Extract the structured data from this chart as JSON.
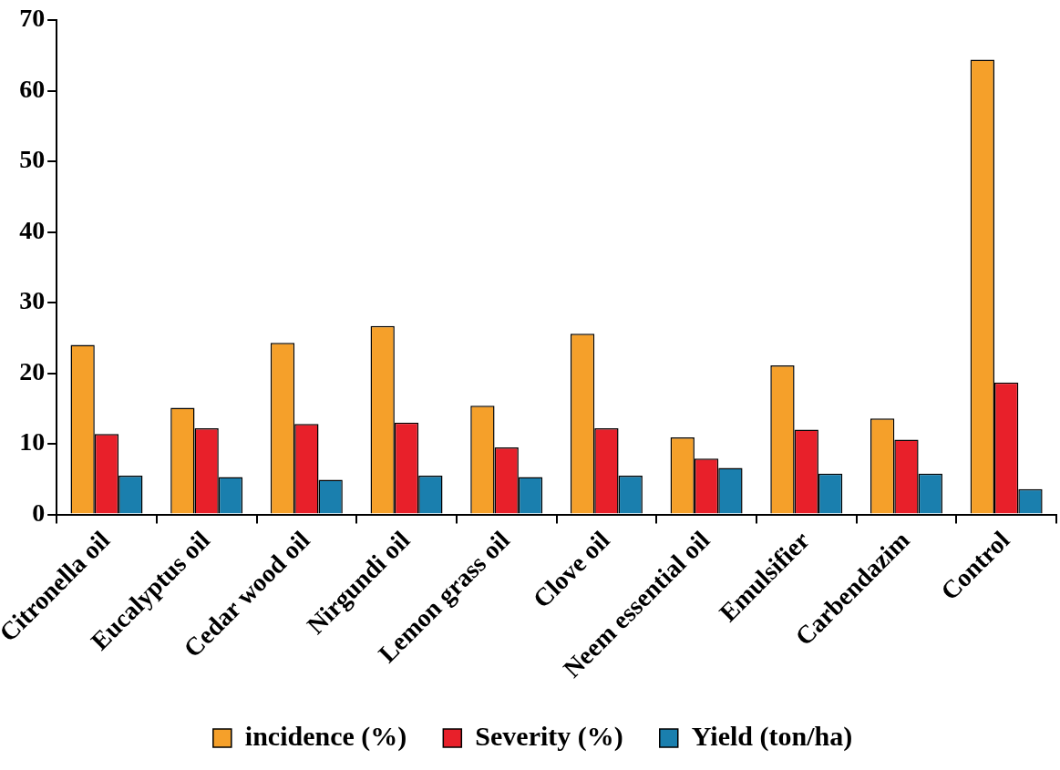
{
  "chart_data": {
    "type": "bar",
    "categories": [
      "Citronella oil",
      "Eucalyptus oil",
      "Cedar wood oil",
      "Nirgundi oil",
      "Lemon grass oil",
      "Clove oil",
      "Neem essential oil",
      "Emulsifier",
      "Carbendazim",
      "Control"
    ],
    "series": [
      {
        "name": "incidence (%)",
        "color": "#f5a02a",
        "values": [
          24.0,
          15.1,
          24.3,
          26.7,
          15.4,
          25.6,
          10.9,
          21.1,
          13.6,
          64.4
        ]
      },
      {
        "name": "Severity (%)",
        "color": "#e8202a",
        "values": [
          11.4,
          12.2,
          12.8,
          13.0,
          9.5,
          12.2,
          7.9,
          12.0,
          10.6,
          18.7
        ]
      },
      {
        "name": "Yield (ton/ha)",
        "color": "#1a7fae",
        "values": [
          5.5,
          5.3,
          4.9,
          5.5,
          5.3,
          5.5,
          6.6,
          5.8,
          5.8,
          3.6
        ]
      }
    ],
    "ylim": [
      0,
      70
    ],
    "yticks": [
      0,
      10,
      20,
      30,
      40,
      50,
      60,
      70
    ],
    "grid": false,
    "legend": "bottom"
  }
}
